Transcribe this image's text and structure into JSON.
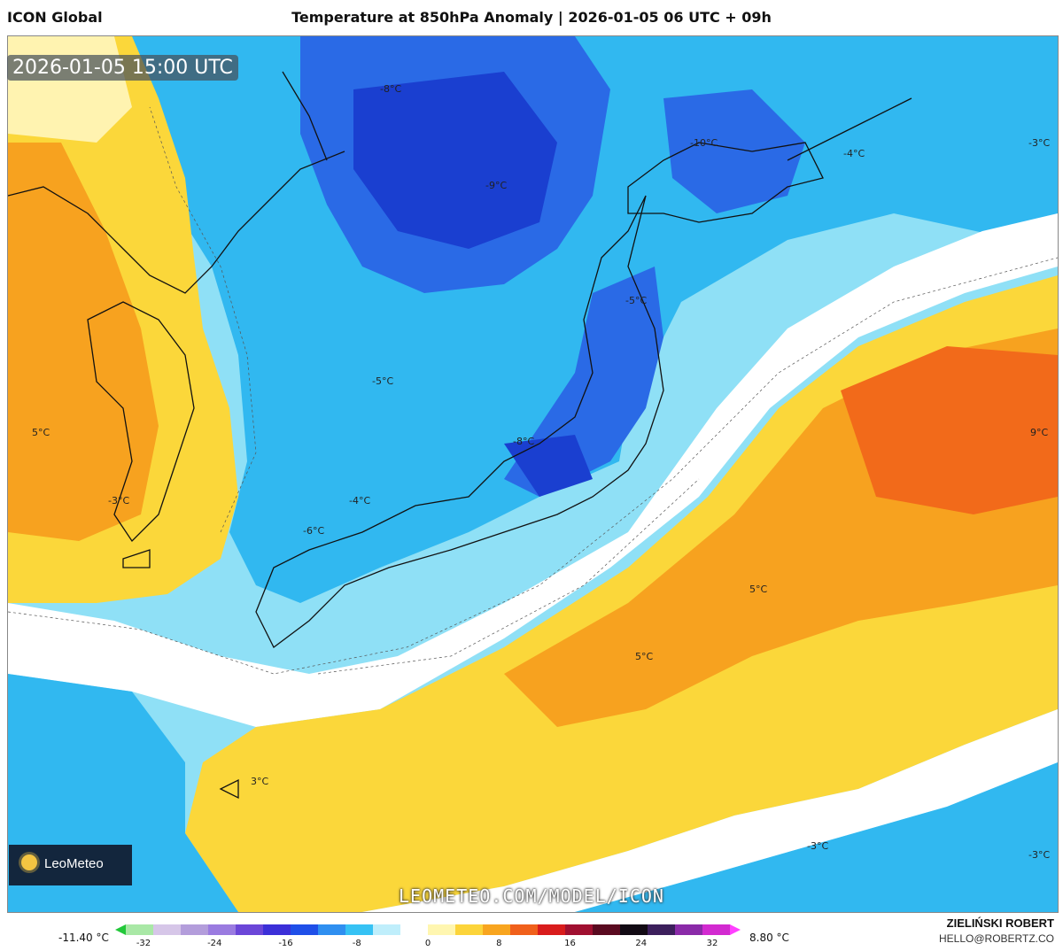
{
  "header": {
    "model_name": "ICON Global",
    "title": "Temperature at 850hPa Anomaly | 2026-01-05 06 UTC + 09h"
  },
  "map": {
    "valid_time": "2026-01-05 15:00 UTC",
    "website": "LEOMETEO.COM/MODEL/ICON",
    "brand": "LeoMeteo",
    "labels": [
      "-8°C",
      "-10°C",
      "-3°C",
      "-4°C",
      "-9°C",
      "-5°C",
      "-5°C",
      "5°C",
      "9°C",
      "-8°C",
      "-4°C",
      "-3°C",
      "-6°C",
      "5°C",
      "5°C",
      "3°C",
      "-3°C",
      "-3°C"
    ],
    "palette": {
      "deep_blue": "#1a3fd0",
      "blue": "#2a6ae6",
      "light_blue": "#31b8f0",
      "pale_blue": "#8fe0f6",
      "white": "#ffffff",
      "pale_yellow": "#fff3b0",
      "yellow": "#fbd73a",
      "orange": "#f7a21f",
      "dark_orange": "#f26a1a"
    }
  },
  "colorbar": {
    "min_label": "-11.40 °C",
    "max_label": "8.80 °C",
    "ticks": [
      "-32",
      "-24",
      "-16",
      "-8",
      "0",
      "8",
      "16",
      "24",
      "32"
    ],
    "colors": [
      "#22c83a",
      "#a9e8a6",
      "#d6c6e8",
      "#b39ddb",
      "#9a7be0",
      "#6b46d8",
      "#3b2fd8",
      "#1f4fe8",
      "#2f8ff0",
      "#36c2f4",
      "#bfeefb",
      "#ffffff",
      "#fff6b0",
      "#fcd43a",
      "#f8a51f",
      "#f0601b",
      "#d91c1c",
      "#a01030",
      "#5a0a20",
      "#120a14",
      "#3c1f5c",
      "#8a2aa8",
      "#d22ad0",
      "#ff40ff"
    ]
  },
  "footer": {
    "author": "ZIELIŃSKI ROBERT",
    "email": "HELLO@ROBERTZ.CO"
  }
}
